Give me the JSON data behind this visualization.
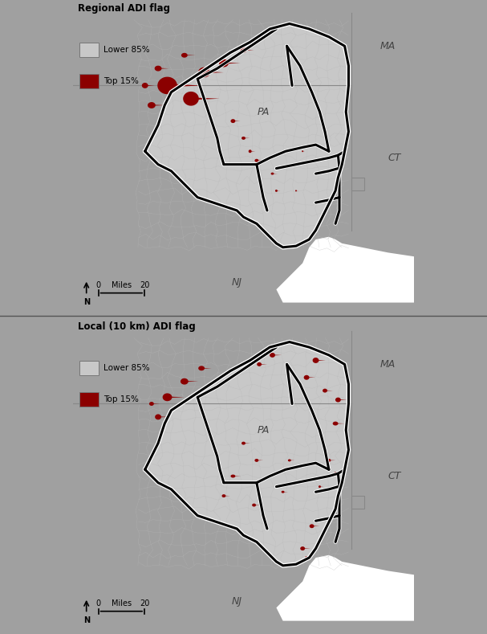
{
  "title_top": "Regional ADI flag",
  "title_bottom": "Local (10 km) ADI flag",
  "legend_lower": "Lower 85%",
  "legend_top": "Top 15%",
  "color_lower": "#c8c8c8",
  "color_top15": "#8b0000",
  "color_background": "#a0a0a0",
  "color_border_thick": "#000000",
  "color_border_thin": "#999999",
  "color_water": "#ffffff",
  "divider_color": "#555555",
  "label_MA": "MA",
  "label_PA": "PA",
  "label_NJ": "NJ",
  "label_CT": "CT",
  "fig_bg": "#a0a0a0",
  "panel_bg": "#a0a0a0"
}
